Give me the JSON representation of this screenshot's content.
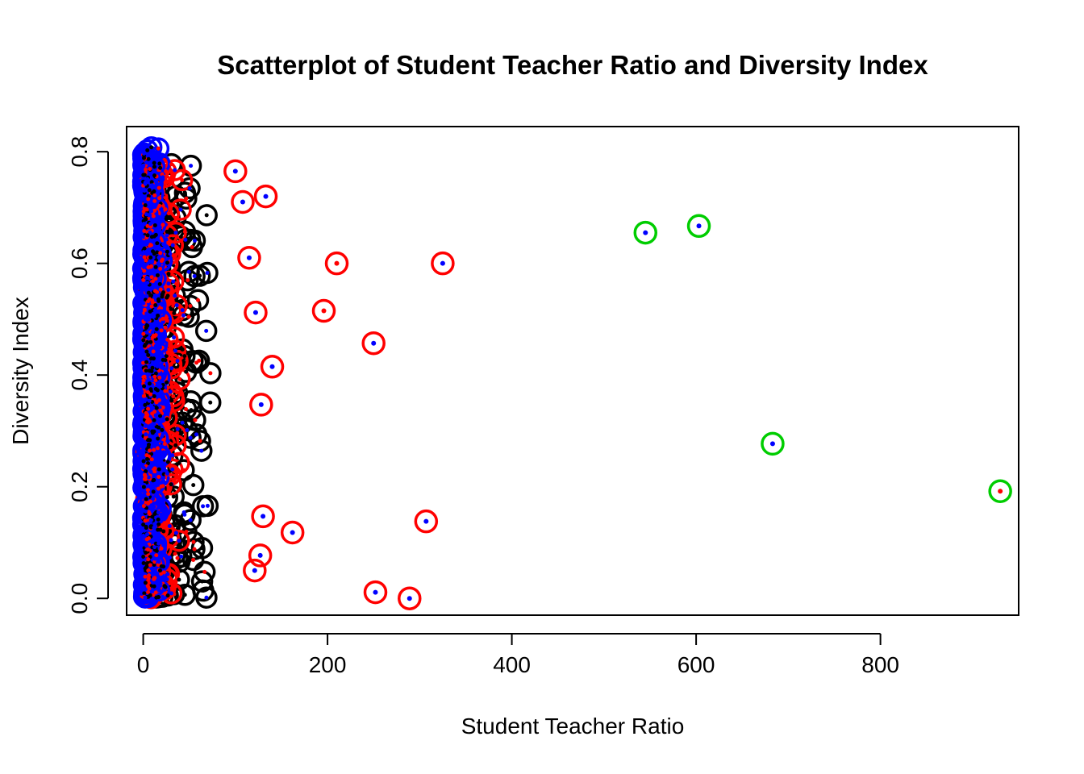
{
  "chart_data": {
    "type": "scatter",
    "title": "Scatterplot of Student Teacher Ratio and Diversity Index",
    "xlabel": "Student Teacher Ratio",
    "ylabel": "Diversity Index",
    "xlim": [
      -18,
      950
    ],
    "ylim": [
      -0.03,
      0.845
    ],
    "x_ticks": [
      0,
      200,
      400,
      600,
      800
    ],
    "x_tick_labels": [
      "0",
      "200",
      "400",
      "600",
      "800"
    ],
    "y_ticks": [
      0.0,
      0.2,
      0.4,
      0.6,
      0.8
    ],
    "y_tick_labels": [
      "0.0",
      "0.2",
      "0.4",
      "0.6",
      "0.8"
    ],
    "grid": false,
    "legend": "none",
    "colors": {
      "black": "#000000",
      "red": "#ff0000",
      "blue": "#0000ff",
      "green": "#00cd00"
    },
    "dense_cluster": {
      "description_visible": false,
      "x_range": [
        0,
        80
      ],
      "y_range": [
        0,
        0.81
      ]
    },
    "highlighted_points": [
      {
        "x": 100,
        "y": 0.765,
        "ring": "red",
        "dot": "blue"
      },
      {
        "x": 108,
        "y": 0.71,
        "ring": "red",
        "dot": "blue"
      },
      {
        "x": 133,
        "y": 0.72,
        "ring": "red",
        "dot": "blue"
      },
      {
        "x": 115,
        "y": 0.61,
        "ring": "red",
        "dot": "blue"
      },
      {
        "x": 210,
        "y": 0.6,
        "ring": "red",
        "dot": "red"
      },
      {
        "x": 325,
        "y": 0.6,
        "ring": "red",
        "dot": "blue"
      },
      {
        "x": 196,
        "y": 0.515,
        "ring": "red",
        "dot": "red"
      },
      {
        "x": 250,
        "y": 0.457,
        "ring": "red",
        "dot": "blue"
      },
      {
        "x": 122,
        "y": 0.512,
        "ring": "red",
        "dot": "blue"
      },
      {
        "x": 140,
        "y": 0.415,
        "ring": "red",
        "dot": "blue"
      },
      {
        "x": 128,
        "y": 0.347,
        "ring": "red",
        "dot": "blue"
      },
      {
        "x": 130,
        "y": 0.147,
        "ring": "red",
        "dot": "blue"
      },
      {
        "x": 162,
        "y": 0.118,
        "ring": "red",
        "dot": "blue"
      },
      {
        "x": 127,
        "y": 0.077,
        "ring": "red",
        "dot": "blue"
      },
      {
        "x": 121,
        "y": 0.05,
        "ring": "red",
        "dot": "blue"
      },
      {
        "x": 307,
        "y": 0.138,
        "ring": "red",
        "dot": "blue"
      },
      {
        "x": 252,
        "y": 0.011,
        "ring": "red",
        "dot": "blue"
      },
      {
        "x": 289,
        "y": 0.0,
        "ring": "red",
        "dot": "blue"
      },
      {
        "x": 545,
        "y": 0.655,
        "ring": "green",
        "dot": "blue"
      },
      {
        "x": 603,
        "y": 0.667,
        "ring": "green",
        "dot": "blue"
      },
      {
        "x": 683,
        "y": 0.277,
        "ring": "green",
        "dot": "blue"
      },
      {
        "x": 930,
        "y": 0.192,
        "ring": "green",
        "dot": "red"
      }
    ]
  }
}
